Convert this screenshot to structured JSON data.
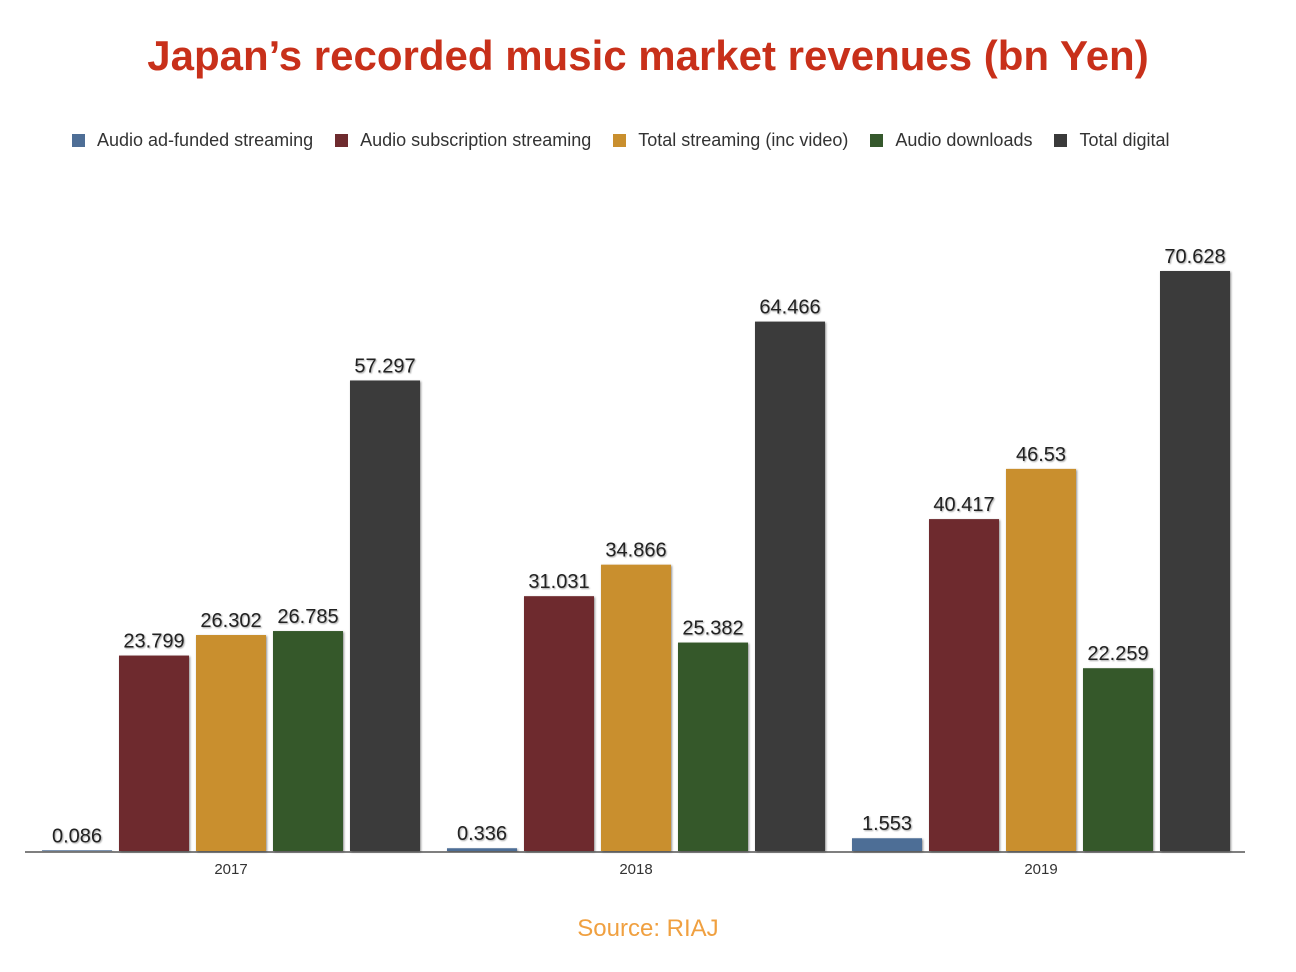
{
  "chart_data": {
    "type": "bar",
    "title": "Japan’s recorded music market revenues (bn Yen)",
    "categories": [
      "2017",
      "2018",
      "2019"
    ],
    "series": [
      {
        "name": "Audio ad-funded streaming",
        "color": "#4e6e96",
        "values": [
          0.086,
          0.336,
          1.553
        ]
      },
      {
        "name": "Audio subscription streaming",
        "color": "#6e2b2e",
        "values": [
          23.799,
          31.031,
          40.417
        ]
      },
      {
        "name": "Total streaming (inc video)",
        "color": "#c98f2e",
        "values": [
          26.302,
          34.866,
          46.53
        ]
      },
      {
        "name": "Audio downloads",
        "color": "#35582c",
        "values": [
          26.785,
          25.382,
          22.259
        ]
      },
      {
        "name": "Total digital",
        "color": "#3a3a3a",
        "values": [
          57.297,
          64.466,
          70.628
        ]
      }
    ],
    "ylim": [
      0,
      70.628
    ],
    "grid": false,
    "legend": "top",
    "source": "Source: RIAJ"
  }
}
